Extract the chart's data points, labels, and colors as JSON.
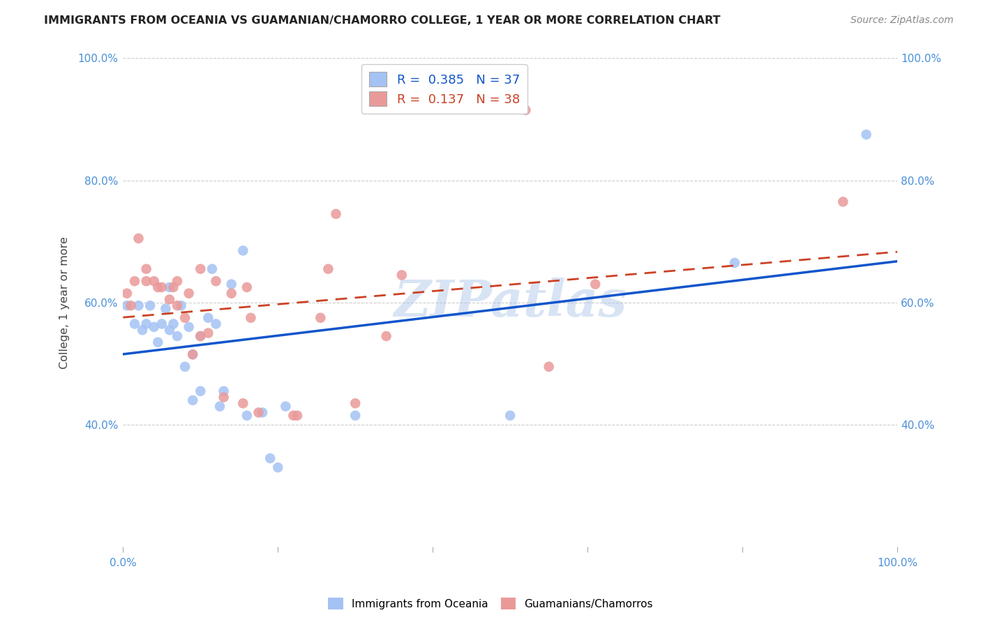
{
  "title": "IMMIGRANTS FROM OCEANIA VS GUAMANIAN/CHAMORRO COLLEGE, 1 YEAR OR MORE CORRELATION CHART",
  "source": "Source: ZipAtlas.com",
  "ylabel": "College, 1 year or more",
  "xlim": [
    0.0,
    1.0
  ],
  "ylim": [
    0.2,
    1.0
  ],
  "blue_R": 0.385,
  "blue_N": 37,
  "pink_R": 0.137,
  "pink_N": 38,
  "blue_color": "#a4c2f4",
  "pink_color": "#ea9999",
  "blue_line_color": "#1155cc",
  "pink_line_color": "#cc4125",
  "legend_blue_label": "Immigrants from Oceania",
  "legend_pink_label": "Guamanians/Chamorros",
  "watermark": "ZIPatlas",
  "blue_x": [
    0.005,
    0.015,
    0.02,
    0.025,
    0.03,
    0.035,
    0.04,
    0.045,
    0.05,
    0.055,
    0.06,
    0.06,
    0.065,
    0.07,
    0.075,
    0.08,
    0.085,
    0.09,
    0.09,
    0.1,
    0.1,
    0.11,
    0.115,
    0.12,
    0.125,
    0.13,
    0.14,
    0.155,
    0.16,
    0.18,
    0.19,
    0.2,
    0.21,
    0.3,
    0.5,
    0.79,
    0.96
  ],
  "blue_y": [
    0.595,
    0.565,
    0.595,
    0.555,
    0.565,
    0.595,
    0.56,
    0.535,
    0.565,
    0.59,
    0.555,
    0.625,
    0.565,
    0.545,
    0.595,
    0.495,
    0.56,
    0.44,
    0.515,
    0.455,
    0.545,
    0.575,
    0.655,
    0.565,
    0.43,
    0.455,
    0.63,
    0.685,
    0.415,
    0.42,
    0.345,
    0.33,
    0.43,
    0.415,
    0.415,
    0.665,
    0.875
  ],
  "pink_x": [
    0.005,
    0.01,
    0.015,
    0.02,
    0.03,
    0.03,
    0.04,
    0.045,
    0.05,
    0.06,
    0.065,
    0.07,
    0.07,
    0.08,
    0.085,
    0.09,
    0.1,
    0.1,
    0.11,
    0.12,
    0.13,
    0.14,
    0.155,
    0.16,
    0.165,
    0.175,
    0.22,
    0.225,
    0.255,
    0.265,
    0.275,
    0.3,
    0.34,
    0.36,
    0.52,
    0.55,
    0.61,
    0.93
  ],
  "pink_y": [
    0.615,
    0.595,
    0.635,
    0.705,
    0.635,
    0.655,
    0.635,
    0.625,
    0.625,
    0.605,
    0.625,
    0.595,
    0.635,
    0.575,
    0.615,
    0.515,
    0.545,
    0.655,
    0.55,
    0.635,
    0.445,
    0.615,
    0.435,
    0.625,
    0.575,
    0.42,
    0.415,
    0.415,
    0.575,
    0.655,
    0.745,
    0.435,
    0.545,
    0.645,
    0.915,
    0.495,
    0.63,
    0.765
  ],
  "grid_color": "#cccccc",
  "tick_color": "#4a90d9",
  "yticks": [
    0.4,
    0.6,
    0.8,
    1.0
  ],
  "xtick_positions": [
    0.0,
    0.2,
    0.4,
    0.6,
    0.8,
    1.0
  ],
  "xtick_labels": [
    "0.0%",
    "",
    "",
    "",
    "",
    "100.0%"
  ]
}
